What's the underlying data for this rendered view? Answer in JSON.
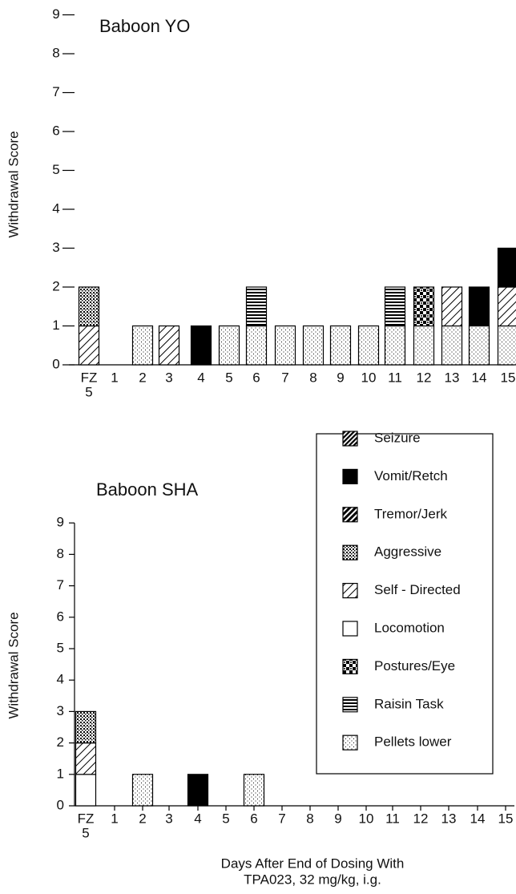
{
  "chart_data": [
    {
      "type": "bar",
      "stacked": true,
      "title": "Baboon YO",
      "ylabel": "Withdrawal Score",
      "categories": [
        [
          "FZ",
          "5"
        ],
        "1",
        "2",
        "3",
        "4",
        "5",
        "6",
        "7",
        "8",
        "9",
        "10",
        "11",
        "12",
        "13",
        "14",
        "15"
      ],
      "ylim": [
        0,
        9
      ],
      "yticks": [
        0,
        1,
        2,
        3,
        4,
        5,
        6,
        7,
        8,
        9
      ],
      "axis_lines": false,
      "series": [
        {
          "name": "Seizure",
          "pattern": "seizure",
          "values": [
            0,
            0,
            0,
            0,
            0,
            0,
            0,
            0,
            0,
            0,
            0,
            0,
            0,
            0,
            0,
            0
          ]
        },
        {
          "name": "Vomit/Retch",
          "pattern": "vomit",
          "values": [
            0,
            0,
            0,
            0,
            1,
            0,
            0,
            0,
            0,
            0,
            0,
            0,
            0,
            0,
            1,
            1
          ]
        },
        {
          "name": "Tremor/Jerk",
          "pattern": "tremor",
          "values": [
            0,
            0,
            0,
            0,
            0,
            0,
            0,
            0,
            0,
            0,
            0,
            0,
            0,
            0,
            0,
            0
          ]
        },
        {
          "name": "Aggressive",
          "pattern": "aggressive",
          "values": [
            1,
            0,
            0,
            0,
            0,
            0,
            0,
            0,
            0,
            0,
            0,
            0,
            0,
            0,
            0,
            0
          ]
        },
        {
          "name": "Self - Directed",
          "pattern": "self",
          "values": [
            1,
            0,
            0,
            1,
            0,
            0,
            0,
            0,
            0,
            0,
            0,
            0,
            0,
            1,
            0,
            1
          ]
        },
        {
          "name": "Locomotion",
          "pattern": "loco",
          "values": [
            0,
            0,
            0,
            0,
            0,
            0,
            0,
            0,
            0,
            0,
            0,
            0,
            0,
            0,
            0,
            0
          ]
        },
        {
          "name": "Postures/Eye",
          "pattern": "postures",
          "values": [
            0,
            0,
            0,
            0,
            0,
            0,
            0,
            0,
            0,
            0,
            0,
            0,
            1,
            0,
            0,
            0
          ]
        },
        {
          "name": "Raisin Task",
          "pattern": "raisin",
          "values": [
            0,
            0,
            0,
            0,
            0,
            0,
            1,
            0,
            0,
            0,
            0,
            1,
            0,
            0,
            0,
            0
          ]
        },
        {
          "name": "Pellets lower",
          "pattern": "pellets",
          "values": [
            0,
            0,
            1,
            0,
            0,
            1,
            1,
            1,
            1,
            1,
            1,
            1,
            1,
            1,
            1,
            1
          ]
        }
      ]
    },
    {
      "type": "bar",
      "stacked": true,
      "title": "Baboon SHA",
      "ylabel": "Withdrawal Score",
      "xlabel": [
        "Days After End of Dosing With",
        "TPA023, 32 mg/kg, i.g."
      ],
      "categories": [
        [
          "FZ",
          "5"
        ],
        "1",
        "2",
        "3",
        "4",
        "5",
        "6",
        "7",
        "8",
        "9",
        "10",
        "11",
        "12",
        "13",
        "14",
        "15"
      ],
      "ylim": [
        0,
        9
      ],
      "yticks": [
        0,
        1,
        2,
        3,
        4,
        5,
        6,
        7,
        8,
        9
      ],
      "axis_lines": true,
      "legend": true,
      "series": [
        {
          "name": "Seizure",
          "pattern": "seizure",
          "values": [
            0,
            0,
            0,
            0,
            0,
            0,
            0,
            0,
            0,
            0,
            0,
            0,
            0,
            0,
            0,
            0
          ]
        },
        {
          "name": "Vomit/Retch",
          "pattern": "vomit",
          "values": [
            0,
            0,
            0,
            0,
            1,
            0,
            0,
            0,
            0,
            0,
            0,
            0,
            0,
            0,
            0,
            0
          ]
        },
        {
          "name": "Tremor/Jerk",
          "pattern": "tremor",
          "values": [
            0,
            0,
            0,
            0,
            0,
            0,
            0,
            0,
            0,
            0,
            0,
            0,
            0,
            0,
            0,
            0
          ]
        },
        {
          "name": "Aggressive",
          "pattern": "aggressive",
          "values": [
            1,
            0,
            0,
            0,
            0,
            0,
            0,
            0,
            0,
            0,
            0,
            0,
            0,
            0,
            0,
            0
          ]
        },
        {
          "name": "Self - Directed",
          "pattern": "self",
          "values": [
            1,
            0,
            0,
            0,
            0,
            0,
            0,
            0,
            0,
            0,
            0,
            0,
            0,
            0,
            0,
            0
          ]
        },
        {
          "name": "Locomotion",
          "pattern": "loco",
          "values": [
            1,
            0,
            0,
            0,
            0,
            0,
            0,
            0,
            0,
            0,
            0,
            0,
            0,
            0,
            0,
            0
          ]
        },
        {
          "name": "Postures/Eye",
          "pattern": "postures",
          "values": [
            0,
            0,
            0,
            0,
            0,
            0,
            0,
            0,
            0,
            0,
            0,
            0,
            0,
            0,
            0,
            0
          ]
        },
        {
          "name": "Raisin Task",
          "pattern": "raisin",
          "values": [
            0,
            0,
            0,
            0,
            0,
            0,
            0,
            0,
            0,
            0,
            0,
            0,
            0,
            0,
            0,
            0
          ]
        },
        {
          "name": "Pellets lower",
          "pattern": "pellets",
          "values": [
            0,
            0,
            1,
            0,
            0,
            0,
            1,
            0,
            0,
            0,
            0,
            0,
            0,
            0,
            0,
            0
          ]
        }
      ]
    }
  ]
}
